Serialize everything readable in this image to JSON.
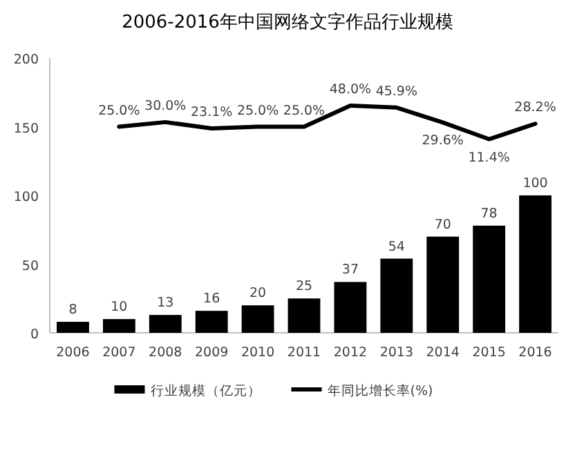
{
  "chart_data": {
    "type": "bar",
    "title": "2006-2016年中国网络文字作品行业规模",
    "categories": [
      "2006",
      "2007",
      "2008",
      "2009",
      "2010",
      "2011",
      "2012",
      "2013",
      "2014",
      "2015",
      "2016"
    ],
    "series": [
      {
        "name": "行业规模（亿元）",
        "color": "#000000",
        "values": [
          8,
          10,
          13,
          16,
          20,
          25,
          37,
          54,
          70,
          78,
          100
        ],
        "value_labels": [
          "8",
          "10",
          "13",
          "16",
          "20",
          "25",
          "37",
          "54",
          "70",
          "78",
          "100"
        ]
      },
      {
        "name": "年同比增长率(%)",
        "type": "line",
        "axis": "y2",
        "color": "#000000",
        "values": [
          null,
          25.0,
          30.0,
          23.1,
          25.0,
          25.0,
          48.0,
          45.9,
          29.6,
          11.4,
          28.2
        ],
        "value_labels": [
          null,
          "25.0%",
          "30.0%",
          "23.1%",
          "25.0%",
          "25.0%",
          "48.0%",
          "45.9%",
          "29.6%",
          "11.4%",
          "28.2%"
        ]
      }
    ],
    "ylim": [
      0,
      200
    ],
    "yticks": [
      0,
      50,
      100,
      150,
      200
    ],
    "y2lim": [
      -200,
      100
    ],
    "tick_labels": "xy",
    "grid": false,
    "legend": "bottom",
    "marker": "none",
    "line_style": "solid"
  }
}
